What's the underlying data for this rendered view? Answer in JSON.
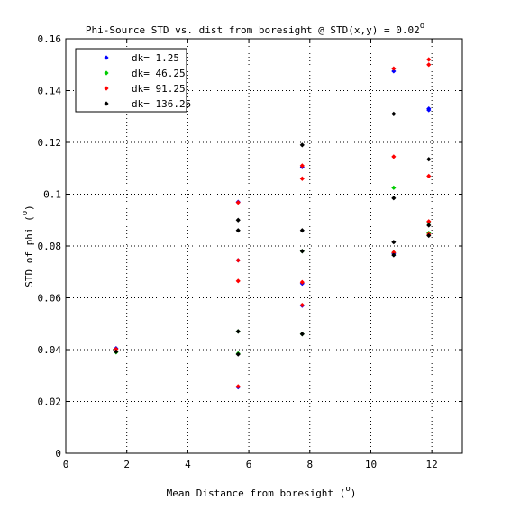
{
  "chart_data": {
    "type": "scatter",
    "title": "Phi-Source STD vs. dist from boresight @ STD(x,y) = 0.02",
    "title_superscript": "o",
    "xlabel": "Mean Distance from boresight (",
    "xlabel_close": ")",
    "ylabel": "STD of phi (",
    "ylabel_close": ")",
    "unit_superscript": "o",
    "xlim": [
      0,
      13
    ],
    "ylim": [
      0,
      0.16
    ],
    "xticks": [
      "0",
      "2",
      "4",
      "6",
      "8",
      "10",
      "12"
    ],
    "yticks": [
      "0",
      "0.02",
      "0.04",
      "0.06",
      "0.08",
      "0.1",
      "0.12",
      "0.14",
      "0.16"
    ],
    "grid": true,
    "legend_position": "top-left",
    "series": [
      {
        "name": "dk= 1.25",
        "color": "#0000ff",
        "points": [
          [
            1.65,
            0.0405
          ],
          [
            5.65,
            0.097
          ],
          [
            5.65,
            0.0745
          ],
          [
            5.65,
            0.0255
          ],
          [
            7.75,
            0.1105
          ],
          [
            7.75,
            0.0655
          ],
          [
            7.75,
            0.057
          ],
          [
            10.75,
            0.1475
          ],
          [
            10.75,
            0.077
          ],
          [
            11.9,
            0.133
          ],
          [
            11.9,
            0.1325
          ],
          [
            11.9,
            0.089
          ]
        ]
      },
      {
        "name": "dk= 46.25",
        "color": "#00cc00",
        "points": [
          [
            1.65,
            0.039
          ],
          [
            5.65,
            0.047
          ],
          [
            5.65,
            0.0385
          ],
          [
            7.75,
            0.046
          ],
          [
            7.75,
            0.078
          ],
          [
            10.75,
            0.1025
          ],
          [
            10.75,
            0.0775
          ],
          [
            11.9,
            0.089
          ],
          [
            11.9,
            0.085
          ]
        ]
      },
      {
        "name": "dk= 91.25",
        "color": "#ff0000",
        "points": [
          [
            1.65,
            0.0402
          ],
          [
            5.65,
            0.0968
          ],
          [
            5.65,
            0.0745
          ],
          [
            5.65,
            0.0665
          ],
          [
            5.65,
            0.0258
          ],
          [
            7.75,
            0.111
          ],
          [
            7.75,
            0.106
          ],
          [
            7.75,
            0.066
          ],
          [
            7.75,
            0.0572
          ],
          [
            10.75,
            0.1485
          ],
          [
            10.75,
            0.1145
          ],
          [
            10.75,
            0.0775
          ],
          [
            11.9,
            0.152
          ],
          [
            11.9,
            0.15
          ],
          [
            11.9,
            0.107
          ],
          [
            11.9,
            0.0895
          ],
          [
            11.9,
            0.0845
          ]
        ]
      },
      {
        "name": "dk= 136.25",
        "color": "#000000",
        "points": [
          [
            1.65,
            0.0392
          ],
          [
            5.65,
            0.09
          ],
          [
            5.65,
            0.086
          ],
          [
            5.65,
            0.047
          ],
          [
            5.65,
            0.0382
          ],
          [
            7.75,
            0.119
          ],
          [
            7.75,
            0.086
          ],
          [
            7.75,
            0.078
          ],
          [
            7.75,
            0.046
          ],
          [
            10.75,
            0.131
          ],
          [
            10.75,
            0.0985
          ],
          [
            10.75,
            0.0815
          ],
          [
            10.75,
            0.0765
          ],
          [
            11.9,
            0.1135
          ],
          [
            11.9,
            0.088
          ],
          [
            11.9,
            0.084
          ]
        ]
      }
    ]
  }
}
